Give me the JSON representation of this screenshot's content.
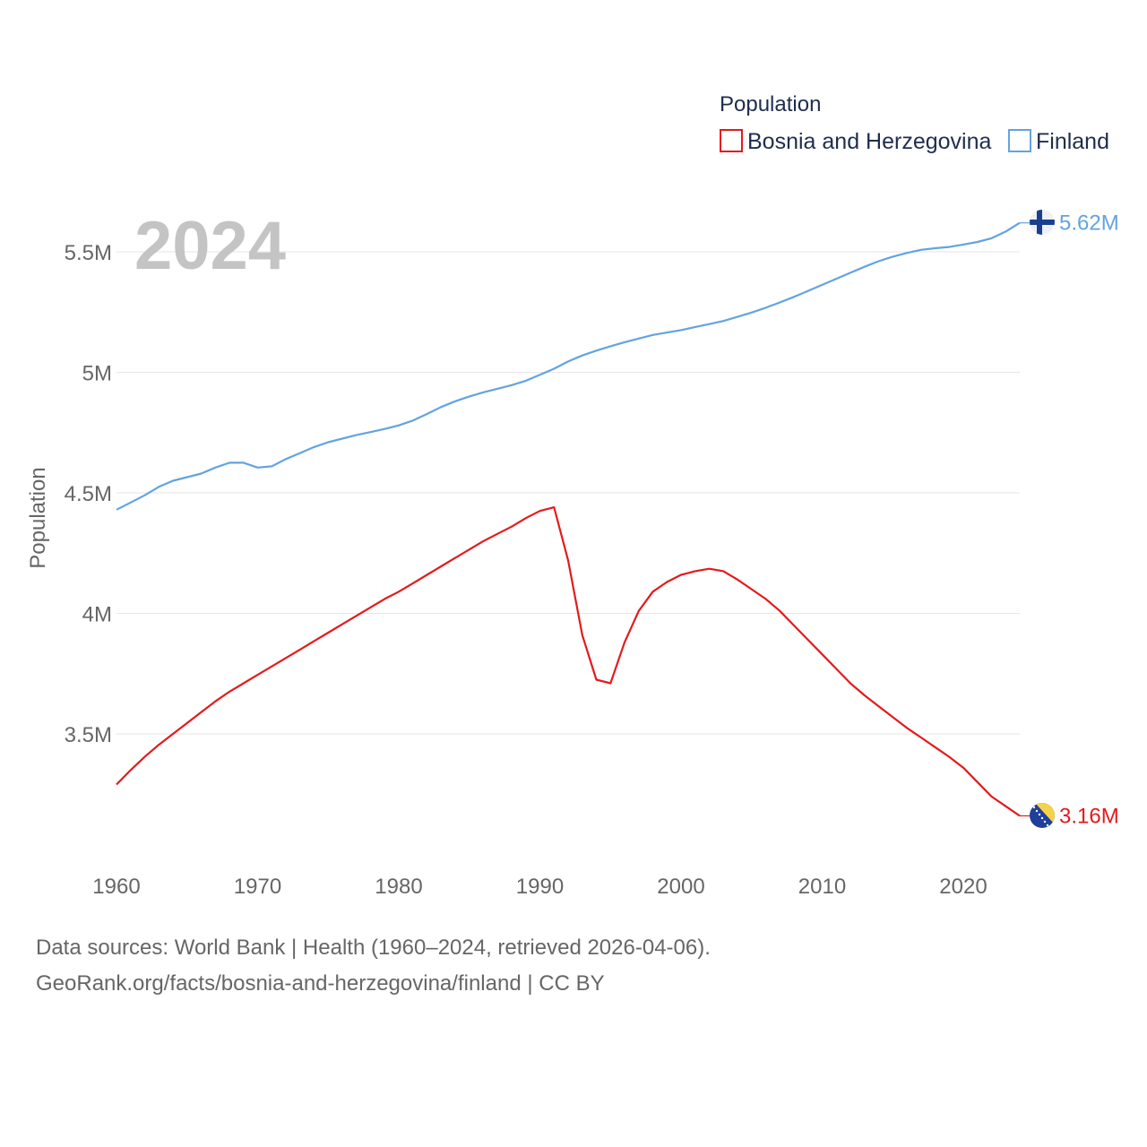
{
  "chart_data": {
    "type": "line",
    "title": "Population",
    "ylabel": "Population",
    "xlabel": "",
    "current_year": "2024",
    "xlim": [
      1960,
      2024
    ],
    "ylim": [
      3060000,
      5700000
    ],
    "x_ticks": [
      1960,
      1970,
      1980,
      1990,
      2000,
      2010,
      2020
    ],
    "y_ticks": [
      {
        "value": 3500000,
        "label": "3.5M"
      },
      {
        "value": 4000000,
        "label": "4M"
      },
      {
        "value": 4500000,
        "label": "4.5M"
      },
      {
        "value": 5000000,
        "label": "5M"
      },
      {
        "value": 5500000,
        "label": "5.5M"
      }
    ],
    "grid": true,
    "legend_title": "Population",
    "legend_position": "top-right",
    "x": [
      1960,
      1961,
      1962,
      1963,
      1964,
      1965,
      1966,
      1967,
      1968,
      1969,
      1970,
      1971,
      1972,
      1973,
      1974,
      1975,
      1976,
      1977,
      1978,
      1979,
      1980,
      1981,
      1982,
      1983,
      1984,
      1985,
      1986,
      1987,
      1988,
      1989,
      1990,
      1991,
      1992,
      1993,
      1994,
      1995,
      1996,
      1997,
      1998,
      1999,
      2000,
      2001,
      2002,
      2003,
      2004,
      2005,
      2006,
      2007,
      2008,
      2009,
      2010,
      2011,
      2012,
      2013,
      2014,
      2015,
      2016,
      2017,
      2018,
      2019,
      2020,
      2021,
      2022,
      2023,
      2024
    ],
    "series": [
      {
        "name": "Bosnia and Herzegovina",
        "color": "#e41a1c",
        "end_label": "3.16M",
        "flag": "bosnia-flag",
        "values": [
          3290000,
          3350000,
          3405000,
          3455000,
          3500000,
          3545000,
          3590000,
          3635000,
          3675000,
          3710000,
          3745000,
          3780000,
          3815000,
          3850000,
          3885000,
          3920000,
          3955000,
          3990000,
          4025000,
          4060000,
          4090000,
          4125000,
          4160000,
          4195000,
          4230000,
          4265000,
          4300000,
          4330000,
          4360000,
          4395000,
          4425000,
          4440000,
          4220000,
          3910000,
          3725000,
          3710000,
          3880000,
          4010000,
          4090000,
          4130000,
          4160000,
          4175000,
          4185000,
          4175000,
          4140000,
          4100000,
          4060000,
          4010000,
          3950000,
          3890000,
          3830000,
          3770000,
          3710000,
          3660000,
          3615000,
          3570000,
          3525000,
          3485000,
          3445000,
          3405000,
          3360000,
          3300000,
          3240000,
          3200000,
          3160000
        ]
      },
      {
        "name": "Finland",
        "color": "#63a3e0",
        "end_label": "5.62M",
        "flag": "finland-flag",
        "values": [
          4430000,
          4460000,
          4490000,
          4525000,
          4550000,
          4565000,
          4580000,
          4605000,
          4625000,
          4625000,
          4605000,
          4610000,
          4640000,
          4665000,
          4690000,
          4710000,
          4725000,
          4740000,
          4752000,
          4765000,
          4780000,
          4800000,
          4827000,
          4856000,
          4880000,
          4900000,
          4917000,
          4932000,
          4947000,
          4965000,
          4990000,
          5015000,
          5045000,
          5070000,
          5090000,
          5108000,
          5125000,
          5140000,
          5155000,
          5165000,
          5175000,
          5188000,
          5200000,
          5213000,
          5230000,
          5248000,
          5268000,
          5290000,
          5313000,
          5338000,
          5363000,
          5388000,
          5413000,
          5438000,
          5461000,
          5480000,
          5495000,
          5508000,
          5515000,
          5520000,
          5530000,
          5541000,
          5556000,
          5584000,
          5620000
        ]
      }
    ]
  },
  "footer": {
    "line1": "Data sources: World Bank | Health (1960–2024, retrieved 2026-04-06).",
    "line2": "GeoRank.org/facts/bosnia-and-herzegovina/finland | CC BY"
  }
}
